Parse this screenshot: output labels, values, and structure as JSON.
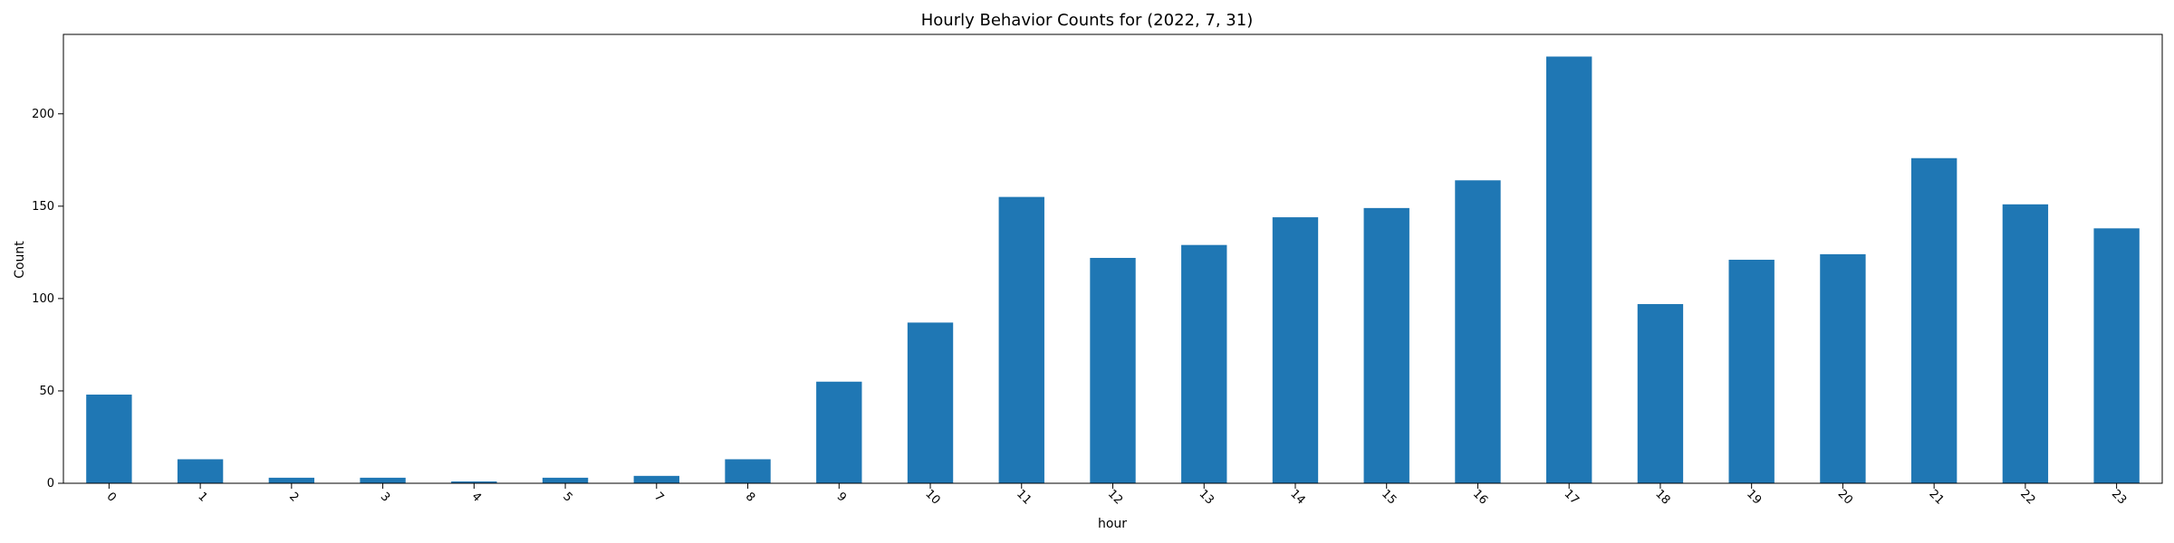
{
  "chart_data": {
    "type": "bar",
    "title": "Hourly Behavior Counts for (2022, 7, 31)",
    "xlabel": "hour",
    "ylabel": "Count",
    "categories": [
      "0",
      "1",
      "2",
      "3",
      "4",
      "5",
      "7",
      "8",
      "9",
      "10",
      "11",
      "12",
      "13",
      "14",
      "15",
      "16",
      "17",
      "18",
      "19",
      "20",
      "21",
      "22",
      "23"
    ],
    "values": [
      48,
      13,
      3,
      3,
      1,
      3,
      4,
      13,
      55,
      87,
      155,
      122,
      129,
      144,
      149,
      164,
      231,
      97,
      121,
      124,
      176,
      151,
      138
    ],
    "ylim": [
      0,
      243
    ],
    "yticks": [
      0,
      50,
      100,
      150,
      200
    ],
    "grid": false,
    "bar_color": "#1f77b4",
    "x_tick_rotation_deg": 45
  }
}
